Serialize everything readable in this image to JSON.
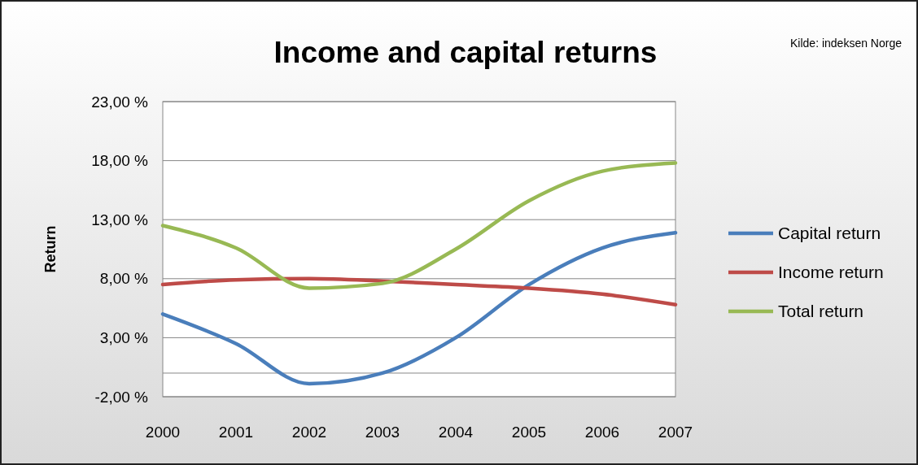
{
  "chart_data": {
    "type": "line",
    "title": "Income and capital returns",
    "ylabel": "Return",
    "annotations": [
      "Kilde: indeksen Norge"
    ],
    "categories": [
      "2000",
      "2001",
      "2002",
      "2003",
      "2004",
      "2005",
      "2006",
      "2007"
    ],
    "series": [
      {
        "name": "Capital return",
        "color": "#4a7ebb",
        "values": [
          5.0,
          2.5,
          -0.9,
          0.0,
          3.0,
          7.5,
          10.6,
          11.9
        ]
      },
      {
        "name": "Income return",
        "color": "#be4b48",
        "values": [
          7.5,
          7.9,
          8.0,
          7.8,
          7.5,
          7.2,
          6.7,
          5.8
        ]
      },
      {
        "name": "Total return",
        "color": "#98b954",
        "values": [
          12.5,
          10.6,
          7.2,
          7.6,
          10.5,
          14.6,
          17.1,
          17.8
        ]
      }
    ],
    "ylim": [
      -2,
      23
    ],
    "yticks": [
      {
        "value": -2,
        "label": "-2,00 %"
      },
      {
        "value": 3,
        "label": "3,00 %"
      },
      {
        "value": 8,
        "label": "8,00 %"
      },
      {
        "value": 13,
        "label": "13,00 %"
      },
      {
        "value": 18,
        "label": "18,00 %"
      },
      {
        "value": 23,
        "label": "23,00 %"
      }
    ],
    "grid": "y",
    "legend": "right",
    "marker": "none",
    "line_style": "solid"
  }
}
